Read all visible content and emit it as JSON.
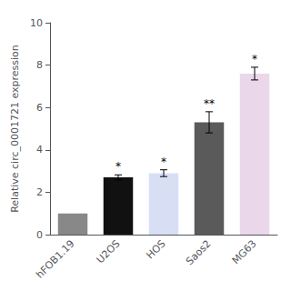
{
  "chart_data": {
    "type": "bar",
    "ylabel": "Relative circ_0001721 expression",
    "categories": [
      "hFOB1.19",
      "U2OS",
      "HOS",
      "Saos2",
      "MG63"
    ],
    "values": [
      1.0,
      2.7,
      2.9,
      5.3,
      7.6
    ],
    "errors": [
      0.0,
      0.12,
      0.16,
      0.5,
      0.3
    ],
    "annotations": [
      null,
      "*",
      "*",
      "**",
      "*"
    ],
    "colors": [
      "#888888",
      "#111111",
      "#d8dff5",
      "#5a5a5a",
      "#ead8ea"
    ],
    "ylim": [
      0,
      10
    ],
    "yticks": [
      0,
      2,
      4,
      6,
      8,
      10
    ],
    "grid": false
  }
}
